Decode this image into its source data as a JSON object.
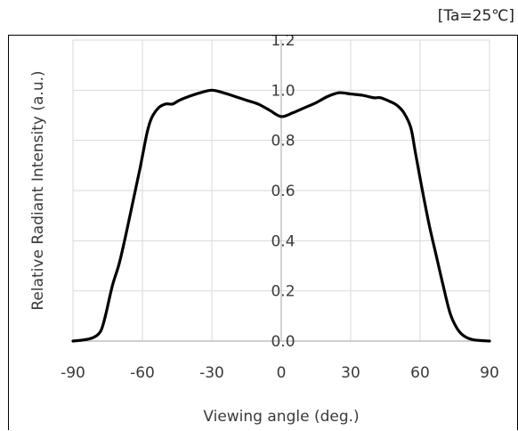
{
  "condition_label": "[Ta=25℃]",
  "chart_data": {
    "type": "line",
    "xlabel": "Viewing angle (deg.)",
    "ylabel": "Relative Radiant Intensity (a.u.)",
    "xlim": [
      -90,
      90
    ],
    "ylim": [
      0.0,
      1.2
    ],
    "x_ticks": [
      "-90",
      "-60",
      "-30",
      "0",
      "30",
      "60",
      "90"
    ],
    "y_ticks": [
      "0.0",
      "0.2",
      "0.4",
      "0.6",
      "0.8",
      "1.0",
      "1.2"
    ],
    "grid": true,
    "legend": "none",
    "series": [
      {
        "color": "#000000",
        "points": [
          [
            -90,
            0.0
          ],
          [
            -85,
            0.005
          ],
          [
            -81,
            0.015
          ],
          [
            -78,
            0.04
          ],
          [
            -76,
            0.1
          ],
          [
            -73,
            0.22
          ],
          [
            -70,
            0.31
          ],
          [
            -67,
            0.43
          ],
          [
            -64,
            0.56
          ],
          [
            -61,
            0.69
          ],
          [
            -58,
            0.83
          ],
          [
            -56,
            0.89
          ],
          [
            -53,
            0.93
          ],
          [
            -50,
            0.945
          ],
          [
            -47,
            0.945
          ],
          [
            -44,
            0.96
          ],
          [
            -40,
            0.975
          ],
          [
            -35,
            0.99
          ],
          [
            -30,
            1.0
          ],
          [
            -25,
            0.99
          ],
          [
            -20,
            0.975
          ],
          [
            -15,
            0.96
          ],
          [
            -10,
            0.945
          ],
          [
            -5,
            0.92
          ],
          [
            0,
            0.895
          ],
          [
            5,
            0.91
          ],
          [
            10,
            0.93
          ],
          [
            15,
            0.95
          ],
          [
            20,
            0.975
          ],
          [
            25,
            0.99
          ],
          [
            30,
            0.985
          ],
          [
            35,
            0.98
          ],
          [
            40,
            0.97
          ],
          [
            43,
            0.97
          ],
          [
            47,
            0.955
          ],
          [
            50,
            0.94
          ],
          [
            53,
            0.91
          ],
          [
            56,
            0.85
          ],
          [
            58,
            0.75
          ],
          [
            61,
            0.6
          ],
          [
            64,
            0.46
          ],
          [
            67,
            0.34
          ],
          [
            70,
            0.22
          ],
          [
            73,
            0.11
          ],
          [
            76,
            0.05
          ],
          [
            79,
            0.02
          ],
          [
            83,
            0.005
          ],
          [
            90,
            0.0
          ]
        ]
      }
    ]
  }
}
